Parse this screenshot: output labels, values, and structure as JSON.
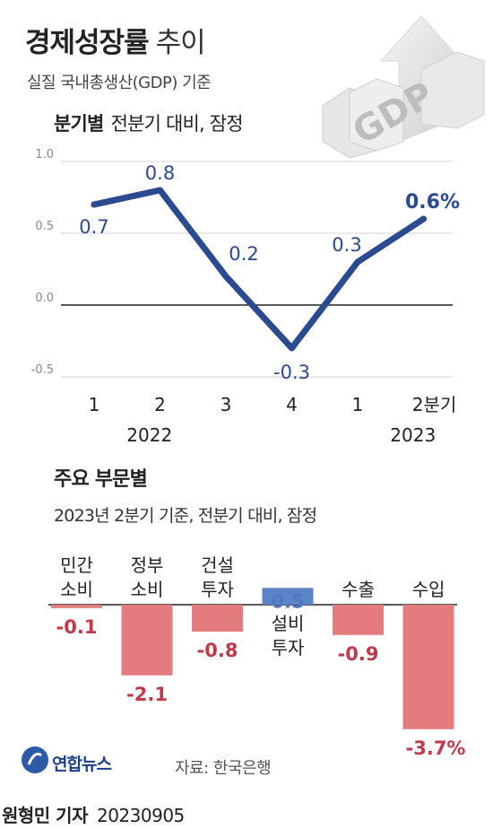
{
  "header": {
    "title": "경제성장률",
    "title_suffix": "추이",
    "subtitle": "실질 국내총생산(GDP) 기준",
    "decoration_text": "GDP"
  },
  "quarterly": {
    "heading_bold": "분기별",
    "heading_note": "전분기 대비, 잠정"
  },
  "sectors": {
    "title": "주요 부문별",
    "note": "2023년 2분기 기준, 전분기 대비, 잠정"
  },
  "footer": {
    "logo": "연합뉴스",
    "source": "자료: 한국은행",
    "reporter": "원형민 기자",
    "date": "20230905"
  },
  "colors": {
    "line": "#2b4a8f",
    "label": "#2b4a8f",
    "neg_bar": "#e37b7f",
    "neg_text": "#c23a4a",
    "pos_bar": "#5b84c8",
    "pos_text": "#4f78c0",
    "zero_line": "#222222",
    "grid": "#d0d0d0",
    "axis_text": "#888888"
  },
  "chart_data": [
    {
      "type": "line",
      "x": [
        "1",
        "2",
        "3",
        "4",
        "1",
        "2분기"
      ],
      "year_labels": [
        {
          "at": 0.5,
          "label": "2022"
        },
        {
          "at": 4.5,
          "label": "2023"
        }
      ],
      "values": [
        0.7,
        0.8,
        0.2,
        -0.3,
        0.3,
        0.6
      ],
      "value_labels": [
        "0.7",
        "0.8",
        "0.2",
        "-0.3",
        "0.3",
        "0.6%"
      ],
      "yticks": [
        "1.0",
        "0.5",
        "0.0",
        "-0.5"
      ],
      "ylim": [
        -0.5,
        1.0
      ],
      "grid": true
    },
    {
      "type": "bar",
      "categories": [
        [
          "민간",
          "소비"
        ],
        [
          "정부",
          "소비"
        ],
        [
          "건설",
          "투자"
        ],
        [
          "설비",
          "투자"
        ],
        [
          "수출"
        ],
        [
          "수입"
        ]
      ],
      "values": [
        -0.1,
        -2.1,
        -0.8,
        0.5,
        -0.9,
        -3.7
      ],
      "value_labels": [
        "-0.1",
        "-2.1",
        "-0.8",
        "0.5",
        "-0.9",
        "-3.7%"
      ]
    }
  ]
}
